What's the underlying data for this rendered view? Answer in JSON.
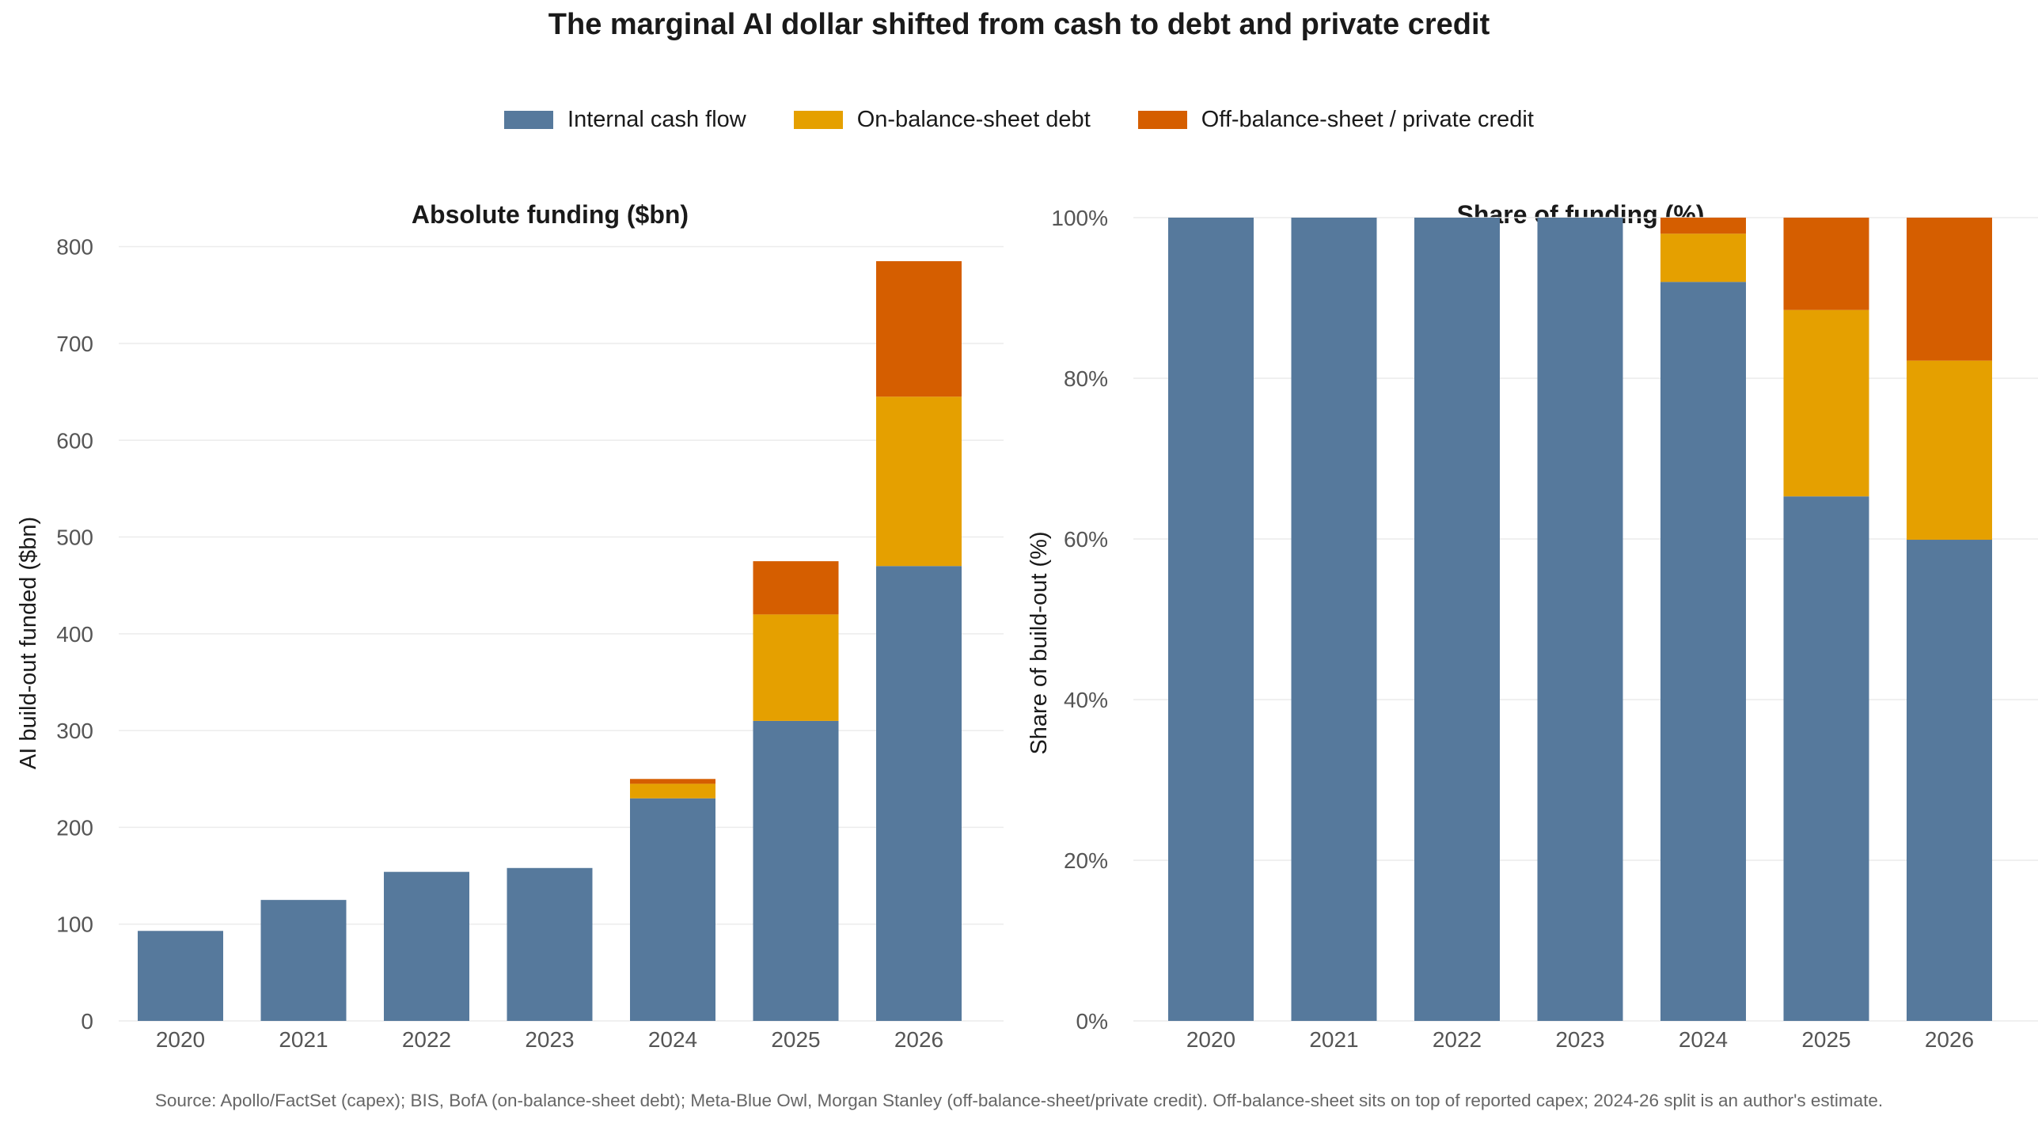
{
  "title": "The marginal AI dollar shifted from cash to debt and private credit",
  "legend": [
    {
      "label": "Internal cash flow",
      "color": "#56799c"
    },
    {
      "label": "On-balance-sheet debt",
      "color": "#e5a000"
    },
    {
      "label": "Off-balance-sheet / private credit",
      "color": "#d55e00"
    }
  ],
  "source": "Source: Apollo/FactSet (capex); BIS, BofA (on-balance-sheet debt); Meta-Blue Owl, Morgan Stanley (off-balance-sheet/private credit). Off-balance-sheet sits on top of reported capex; 2024-26 split is an author's estimate.",
  "chart_data": [
    {
      "type": "bar",
      "stacked": true,
      "title": "Absolute funding ($bn)",
      "xlabel": "",
      "ylabel": "AI build-out funded ($bn)",
      "categories": [
        "2020",
        "2021",
        "2022",
        "2023",
        "2024",
        "2025",
        "2026"
      ],
      "ylim": [
        0,
        830
      ],
      "yticks": [
        0,
        100,
        200,
        300,
        400,
        500,
        600,
        700,
        800
      ],
      "ytick_labels": [
        "0",
        "100",
        "200",
        "300",
        "400",
        "500",
        "600",
        "700",
        "800"
      ],
      "grid": true,
      "series": [
        {
          "name": "Internal cash flow",
          "values": [
            93,
            125,
            154,
            158,
            230,
            310,
            470
          ],
          "color": "#56799c"
        },
        {
          "name": "On-balance-sheet debt",
          "values": [
            0,
            0,
            0,
            0,
            15,
            110,
            175
          ],
          "color": "#e5a000"
        },
        {
          "name": "Off-balance-sheet / private credit",
          "values": [
            0,
            0,
            0,
            0,
            5,
            55,
            140
          ],
          "color": "#d55e00"
        }
      ]
    },
    {
      "type": "bar",
      "stacked": true,
      "title": "Share of funding (%)",
      "xlabel": "",
      "ylabel": "Share of build-out (%)",
      "categories": [
        "2020",
        "2021",
        "2022",
        "2023",
        "2024",
        "2025",
        "2026"
      ],
      "ylim": [
        0,
        100
      ],
      "yticks": [
        0,
        20,
        40,
        60,
        80,
        100
      ],
      "ytick_labels": [
        "0%",
        "20%",
        "40%",
        "60%",
        "80%",
        "100%"
      ],
      "grid": true,
      "series": [
        {
          "name": "Internal cash flow",
          "values": [
            100,
            100,
            100,
            100,
            92,
            65.3,
            59.9
          ],
          "color": "#56799c"
        },
        {
          "name": "On-balance-sheet debt",
          "values": [
            0,
            0,
            0,
            0,
            6,
            23.2,
            22.3
          ],
          "color": "#e5a000"
        },
        {
          "name": "Off-balance-sheet / private credit",
          "values": [
            0,
            0,
            0,
            0,
            2,
            11.5,
            17.8
          ],
          "color": "#d55e00"
        }
      ]
    }
  ]
}
